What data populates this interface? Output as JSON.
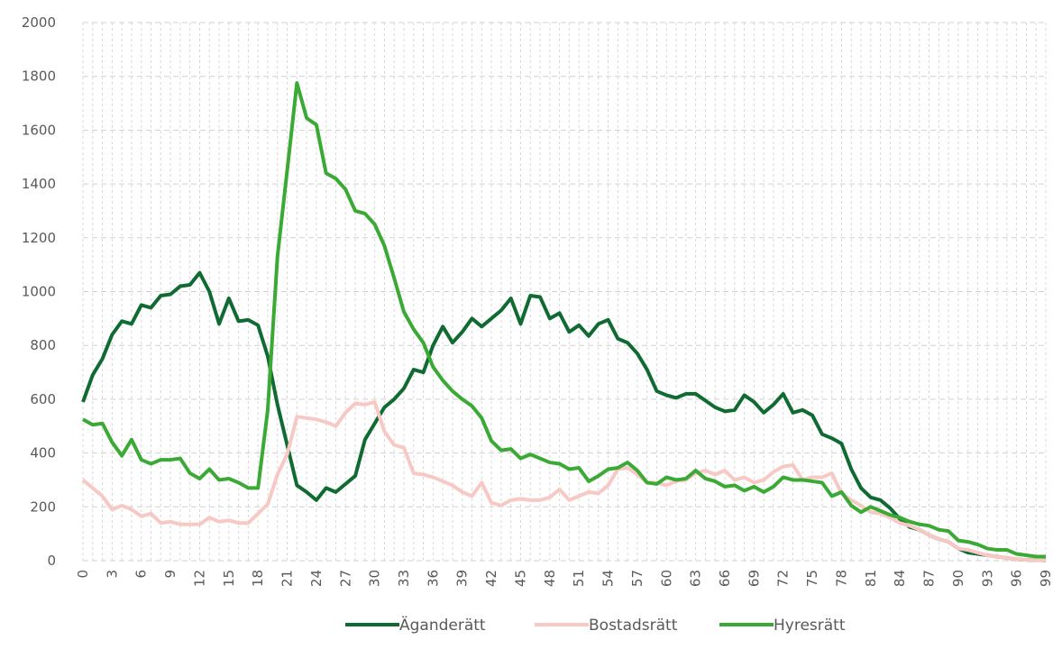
{
  "chart_data": {
    "type": "line",
    "x": [
      0,
      1,
      2,
      3,
      4,
      5,
      6,
      7,
      8,
      9,
      10,
      11,
      12,
      13,
      14,
      15,
      16,
      17,
      18,
      19,
      20,
      21,
      22,
      23,
      24,
      25,
      26,
      27,
      28,
      29,
      30,
      31,
      32,
      33,
      34,
      35,
      36,
      37,
      38,
      39,
      40,
      41,
      42,
      43,
      44,
      45,
      46,
      47,
      48,
      49,
      50,
      51,
      52,
      53,
      54,
      55,
      56,
      57,
      58,
      59,
      60,
      61,
      62,
      63,
      64,
      65,
      66,
      67,
      68,
      69,
      70,
      71,
      72,
      73,
      74,
      75,
      76,
      77,
      78,
      79,
      80,
      81,
      82,
      83,
      84,
      85,
      86,
      87,
      88,
      89,
      90,
      91,
      92,
      93,
      94,
      95,
      96,
      97,
      98,
      99
    ],
    "xlim": [
      0,
      99
    ],
    "xticks": [
      0,
      3,
      6,
      9,
      12,
      15,
      18,
      21,
      24,
      27,
      30,
      33,
      36,
      39,
      42,
      45,
      48,
      51,
      54,
      57,
      60,
      63,
      66,
      69,
      72,
      75,
      78,
      81,
      84,
      87,
      90,
      93,
      96,
      99
    ],
    "ylim": [
      0,
      2000
    ],
    "yticks": [
      0,
      200,
      400,
      600,
      800,
      1000,
      1200,
      1400,
      1600,
      1800,
      2000
    ],
    "grid": true,
    "legend": "bottom",
    "series": [
      {
        "name": "Äganderätt",
        "color": "#0f6b32",
        "values": [
          590,
          690,
          750,
          840,
          890,
          880,
          950,
          940,
          985,
          990,
          1020,
          1025,
          1070,
          1000,
          880,
          975,
          890,
          895,
          875,
          760,
          580,
          430,
          280,
          255,
          225,
          270,
          255,
          285,
          315,
          450,
          510,
          570,
          600,
          640,
          710,
          700,
          800,
          870,
          810,
          850,
          900,
          870,
          900,
          930,
          975,
          880,
          985,
          980,
          900,
          920,
          850,
          875,
          835,
          880,
          895,
          825,
          810,
          770,
          710,
          630,
          615,
          605,
          620,
          620,
          595,
          570,
          555,
          560,
          615,
          590,
          550,
          580,
          620,
          550,
          560,
          540,
          470,
          455,
          435,
          340,
          270,
          235,
          225,
          195,
          155,
          125,
          115,
          95,
          80,
          70,
          45,
          30,
          25,
          20,
          15,
          10,
          5,
          3,
          2,
          1
        ]
      },
      {
        "name": "Bostadsrätt",
        "color": "#f8c9c4",
        "values": [
          300,
          270,
          240,
          190,
          205,
          190,
          165,
          175,
          140,
          145,
          135,
          135,
          135,
          160,
          145,
          150,
          140,
          140,
          175,
          210,
          320,
          395,
          535,
          530,
          525,
          515,
          500,
          550,
          585,
          580,
          590,
          480,
          430,
          420,
          325,
          320,
          310,
          295,
          280,
          255,
          240,
          290,
          215,
          205,
          225,
          230,
          225,
          225,
          235,
          265,
          225,
          240,
          255,
          250,
          280,
          340,
          345,
          320,
          290,
          290,
          280,
          295,
          300,
          325,
          335,
          320,
          335,
          300,
          310,
          290,
          300,
          330,
          350,
          355,
          300,
          310,
          310,
          325,
          250,
          225,
          205,
          180,
          175,
          160,
          140,
          130,
          115,
          95,
          80,
          70,
          45,
          40,
          30,
          20,
          15,
          10,
          5,
          3,
          2,
          1
        ]
      },
      {
        "name": "Hyresrätt",
        "color": "#3aaa35",
        "values": [
          525,
          505,
          510,
          440,
          390,
          450,
          375,
          360,
          375,
          375,
          380,
          325,
          305,
          340,
          300,
          305,
          290,
          270,
          270,
          560,
          1130,
          1450,
          1775,
          1645,
          1620,
          1440,
          1420,
          1380,
          1300,
          1290,
          1250,
          1170,
          1050,
          925,
          860,
          810,
          720,
          670,
          630,
          600,
          575,
          530,
          445,
          410,
          415,
          380,
          395,
          380,
          365,
          360,
          340,
          345,
          295,
          315,
          340,
          345,
          365,
          335,
          290,
          285,
          310,
          300,
          305,
          335,
          305,
          295,
          275,
          280,
          260,
          275,
          255,
          275,
          310,
          300,
          300,
          295,
          290,
          240,
          255,
          205,
          180,
          200,
          185,
          170,
          160,
          145,
          135,
          130,
          115,
          110,
          75,
          70,
          60,
          45,
          40,
          40,
          25,
          20,
          15,
          15
        ]
      }
    ]
  }
}
